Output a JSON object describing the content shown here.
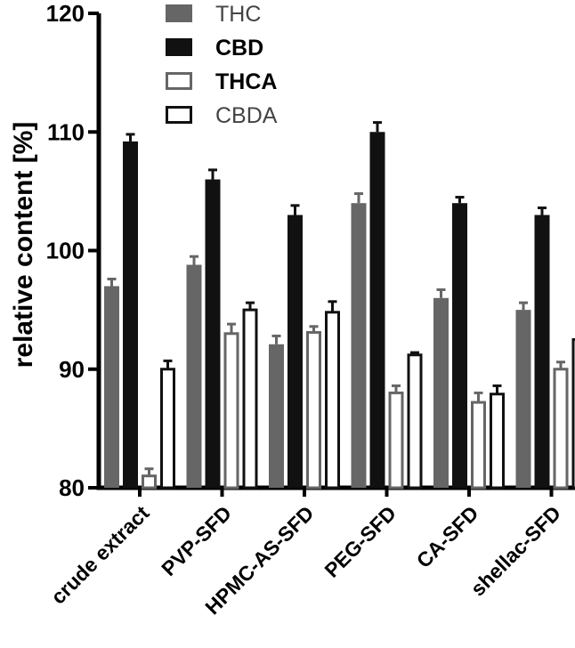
{
  "chart_data": {
    "type": "bar",
    "title": "",
    "xlabel": "",
    "ylabel": "relative content [%]",
    "ylim": [
      80,
      120
    ],
    "yticks": [
      80,
      90,
      100,
      110,
      120
    ],
    "grid": false,
    "legend_position": "top-center",
    "categories": [
      "crude extract",
      "PVP-SFD",
      "HPMC-AS-SFD",
      "PEG-SFD",
      "CA-SFD",
      "shellac-SFD"
    ],
    "series": [
      {
        "name": "THC",
        "fill": "#666666",
        "stroke": "#666666",
        "values": [
          97.0,
          98.8,
          92.1,
          104.0,
          96.0,
          95.0
        ],
        "errors": [
          0.6,
          0.7,
          0.7,
          0.8,
          0.7,
          0.6
        ]
      },
      {
        "name": "CBD",
        "fill": "#111111",
        "stroke": "#111111",
        "values": [
          109.2,
          106.0,
          103.0,
          110.0,
          104.0,
          103.0
        ],
        "errors": [
          0.6,
          0.8,
          0.8,
          0.8,
          0.5,
          0.6
        ]
      },
      {
        "name": "THCA",
        "fill": "#ffffff",
        "stroke": "#666666",
        "values": [
          81.0,
          93.0,
          93.1,
          88.0,
          87.2,
          90.0
        ],
        "errors": [
          0.6,
          0.8,
          0.5,
          0.6,
          0.8,
          0.6
        ]
      },
      {
        "name": "CBDA",
        "fill": "#ffffff",
        "stroke": "#111111",
        "values": [
          90.0,
          95.0,
          94.8,
          91.2,
          87.9,
          92.5
        ],
        "errors": [
          0.7,
          0.6,
          0.9,
          0.2,
          0.7,
          0.6
        ]
      }
    ]
  }
}
